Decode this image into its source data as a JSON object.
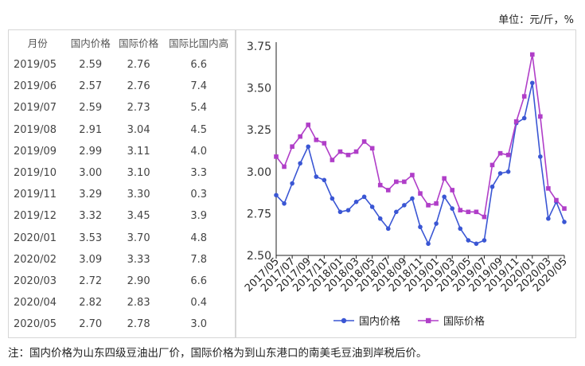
{
  "unit_label": "单位：元/斤，%",
  "table": {
    "headers": [
      "月份",
      "国内价格",
      "国际价格",
      "国际比国内高"
    ],
    "rows": [
      [
        "2019/05",
        "2.59",
        "2.76",
        "6.6"
      ],
      [
        "2019/06",
        "2.57",
        "2.76",
        "7.4"
      ],
      [
        "2019/07",
        "2.59",
        "2.73",
        "5.4"
      ],
      [
        "2019/08",
        "2.91",
        "3.04",
        "4.5"
      ],
      [
        "2019/09",
        "2.99",
        "3.11",
        "4.0"
      ],
      [
        "2019/10",
        "3.00",
        "3.10",
        "3.3"
      ],
      [
        "2019/11",
        "3.29",
        "3.30",
        "0.3"
      ],
      [
        "2019/12",
        "3.32",
        "3.45",
        "3.9"
      ],
      [
        "2020/01",
        "3.53",
        "3.70",
        "4.8"
      ],
      [
        "2020/02",
        "3.09",
        "3.33",
        "7.8"
      ],
      [
        "2020/03",
        "2.72",
        "2.90",
        "6.6"
      ],
      [
        "2020/04",
        "2.82",
        "2.83",
        "0.4"
      ],
      [
        "2020/05",
        "2.70",
        "2.78",
        "3.0"
      ]
    ]
  },
  "chart_data": {
    "type": "line",
    "x": [
      "2017/05",
      "2017/06",
      "2017/07",
      "2017/08",
      "2017/09",
      "2017/10",
      "2017/11",
      "2017/12",
      "2018/01",
      "2018/02",
      "2018/03",
      "2018/04",
      "2018/05",
      "2018/06",
      "2018/07",
      "2018/08",
      "2018/09",
      "2018/10",
      "2018/11",
      "2018/12",
      "2019/01",
      "2019/02",
      "2019/03",
      "2019/04",
      "2019/05",
      "2019/06",
      "2019/07",
      "2019/08",
      "2019/09",
      "2019/10",
      "2019/11",
      "2019/12",
      "2020/01",
      "2020/02",
      "2020/03",
      "2020/04",
      "2020/05"
    ],
    "xtick_labels": [
      "2017/05",
      "2017/07",
      "2017/09",
      "2017/11",
      "2018/01",
      "2018/03",
      "2018/05",
      "2018/07",
      "2018/09",
      "2018/11",
      "2019/01",
      "2019/03",
      "2019/05",
      "2019/07",
      "2019/09",
      "2019/11",
      "2020/01",
      "2020/03",
      "2020/05"
    ],
    "series": [
      {
        "name": "国内价格",
        "color": "#3a56d4",
        "marker": "circle",
        "values": [
          2.86,
          2.81,
          2.93,
          3.05,
          3.15,
          2.97,
          2.95,
          2.84,
          2.76,
          2.77,
          2.82,
          2.85,
          2.79,
          2.72,
          2.66,
          2.76,
          2.8,
          2.84,
          2.67,
          2.57,
          2.69,
          2.85,
          2.78,
          2.66,
          2.59,
          2.57,
          2.59,
          2.91,
          2.99,
          3.0,
          3.29,
          3.32,
          3.53,
          3.09,
          2.72,
          2.82,
          2.7
        ]
      },
      {
        "name": "国际价格",
        "color": "#b03ec8",
        "marker": "square",
        "values": [
          3.09,
          3.03,
          3.15,
          3.21,
          3.28,
          3.19,
          3.17,
          3.07,
          3.12,
          3.1,
          3.12,
          3.18,
          3.14,
          2.92,
          2.89,
          2.94,
          2.94,
          2.98,
          2.87,
          2.8,
          2.81,
          2.96,
          2.89,
          2.77,
          2.76,
          2.76,
          2.73,
          3.04,
          3.11,
          3.1,
          3.3,
          3.45,
          3.7,
          3.33,
          2.9,
          2.83,
          2.78
        ]
      }
    ],
    "yticks": [
      2.5,
      2.75,
      3.0,
      3.25,
      3.5,
      3.75
    ],
    "ylim": [
      2.5,
      3.75
    ],
    "grid": false,
    "legend": "bottom-center",
    "title": "",
    "xlabel": "",
    "ylabel": ""
  },
  "note": "注：国内价格为山东四级豆油出厂价，国际价格为到山东港口的南美毛豆油到岸税后价。"
}
